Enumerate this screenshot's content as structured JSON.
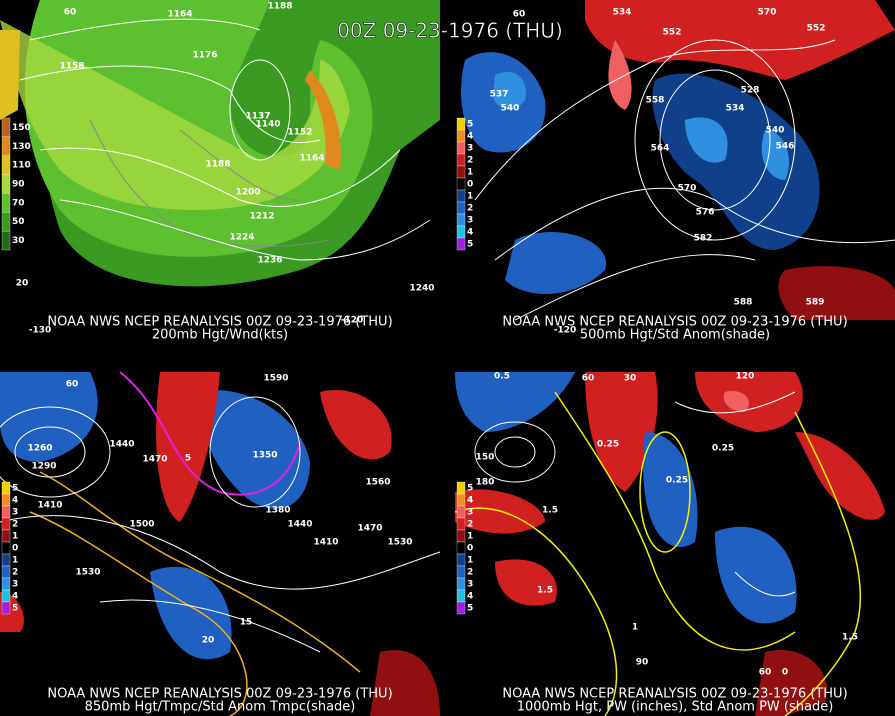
{
  "title": "00Z 09-23-1976 (THU)",
  "panels": [
    {
      "caption": "NOAA NWS NCEP REANALYSIS 00Z 09-23-1976 (THU)",
      "subtitle": "200mb Hgt/Wnd(kts)",
      "legend": [
        {
          "label": "150",
          "color": "#b5651d"
        },
        {
          "label": "130",
          "color": "#e08a1e"
        },
        {
          "label": "110",
          "color": "#e0c020"
        },
        {
          "label": "90",
          "color": "#a8d840"
        },
        {
          "label": "70",
          "color": "#5cc030"
        },
        {
          "label": "50",
          "color": "#3a9a22"
        },
        {
          "label": "30",
          "color": "#1f6e14"
        }
      ],
      "labels": [
        "1164",
        "1188",
        "1176",
        "1158",
        "1137",
        "1140",
        "1152",
        "1164",
        "1188",
        "1200",
        "1212",
        "1224",
        "1236",
        "1240",
        "20",
        "60",
        "-130",
        "-120"
      ]
    },
    {
      "caption": "NOAA NWS NCEP REANALYSIS 00Z 09-23-1976 (THU)",
      "subtitle": "500mb Hgt/Std Anom(shade)",
      "legend": [
        {
          "label": "5",
          "color": "#f0d000"
        },
        {
          "label": "4",
          "color": "#f09020"
        },
        {
          "label": "3",
          "color": "#f06060"
        },
        {
          "label": "2",
          "color": "#d02020"
        },
        {
          "label": "1",
          "color": "#901010"
        },
        {
          "label": "0",
          "color": "#000000"
        },
        {
          "label": "1",
          "color": "#10408a"
        },
        {
          "label": "2",
          "color": "#2060c0"
        },
        {
          "label": "3",
          "color": "#3090e0"
        },
        {
          "label": "4",
          "color": "#20c0e0"
        },
        {
          "label": "5",
          "color": "#a020e0"
        }
      ],
      "labels": [
        "534",
        "570",
        "552",
        "552",
        "537",
        "540",
        "528",
        "534",
        "558",
        "564",
        "540",
        "546",
        "570",
        "576",
        "582",
        "588",
        "589",
        "60",
        "-120"
      ]
    },
    {
      "caption": "NOAA NWS NCEP REANALYSIS 00Z 09-23-1976 (THU)",
      "subtitle": "850mb Hgt/Tmpc/Std Anom Tmpc(shade)",
      "legend": [
        {
          "label": "5",
          "color": "#f0d000"
        },
        {
          "label": "4",
          "color": "#f09020"
        },
        {
          "label": "3",
          "color": "#f06060"
        },
        {
          "label": "2",
          "color": "#d02020"
        },
        {
          "label": "1",
          "color": "#901010"
        },
        {
          "label": "0",
          "color": "#000000"
        },
        {
          "label": "1",
          "color": "#10408a"
        },
        {
          "label": "2",
          "color": "#2060c0"
        },
        {
          "label": "3",
          "color": "#3090e0"
        },
        {
          "label": "4",
          "color": "#20c0e0"
        },
        {
          "label": "5",
          "color": "#a020e0"
        }
      ],
      "labels": [
        "1590",
        "1440",
        "1470",
        "1260",
        "1290",
        "1350",
        "1380",
        "1410",
        "1440",
        "1500",
        "1530",
        "1560",
        "1410",
        "1470",
        "1530",
        "20",
        "15",
        "5",
        "60"
      ]
    },
    {
      "caption": "NOAA NWS NCEP REANALYSIS 00Z 09-23-1976 (THU)",
      "subtitle": "1000mb Hgt, PW (inches), Std Anom PW (shade)",
      "legend": [
        {
          "label": "5",
          "color": "#f0d000"
        },
        {
          "label": "4",
          "color": "#f09020"
        },
        {
          "label": "3",
          "color": "#f06060"
        },
        {
          "label": "2",
          "color": "#d02020"
        },
        {
          "label": "1",
          "color": "#901010"
        },
        {
          "label": "0",
          "color": "#000000"
        },
        {
          "label": "1",
          "color": "#10408a"
        },
        {
          "label": "2",
          "color": "#2060c0"
        },
        {
          "label": "3",
          "color": "#3090e0"
        },
        {
          "label": "4",
          "color": "#20c0e0"
        },
        {
          "label": "5",
          "color": "#a020e0"
        }
      ],
      "labels": [
        "0.5",
        "0.25",
        "0.25",
        "0.25",
        "1.5",
        "1.5",
        "1.5",
        "1",
        "90",
        "60",
        "30",
        "120",
        "150",
        "180",
        "60",
        "0"
      ]
    }
  ]
}
